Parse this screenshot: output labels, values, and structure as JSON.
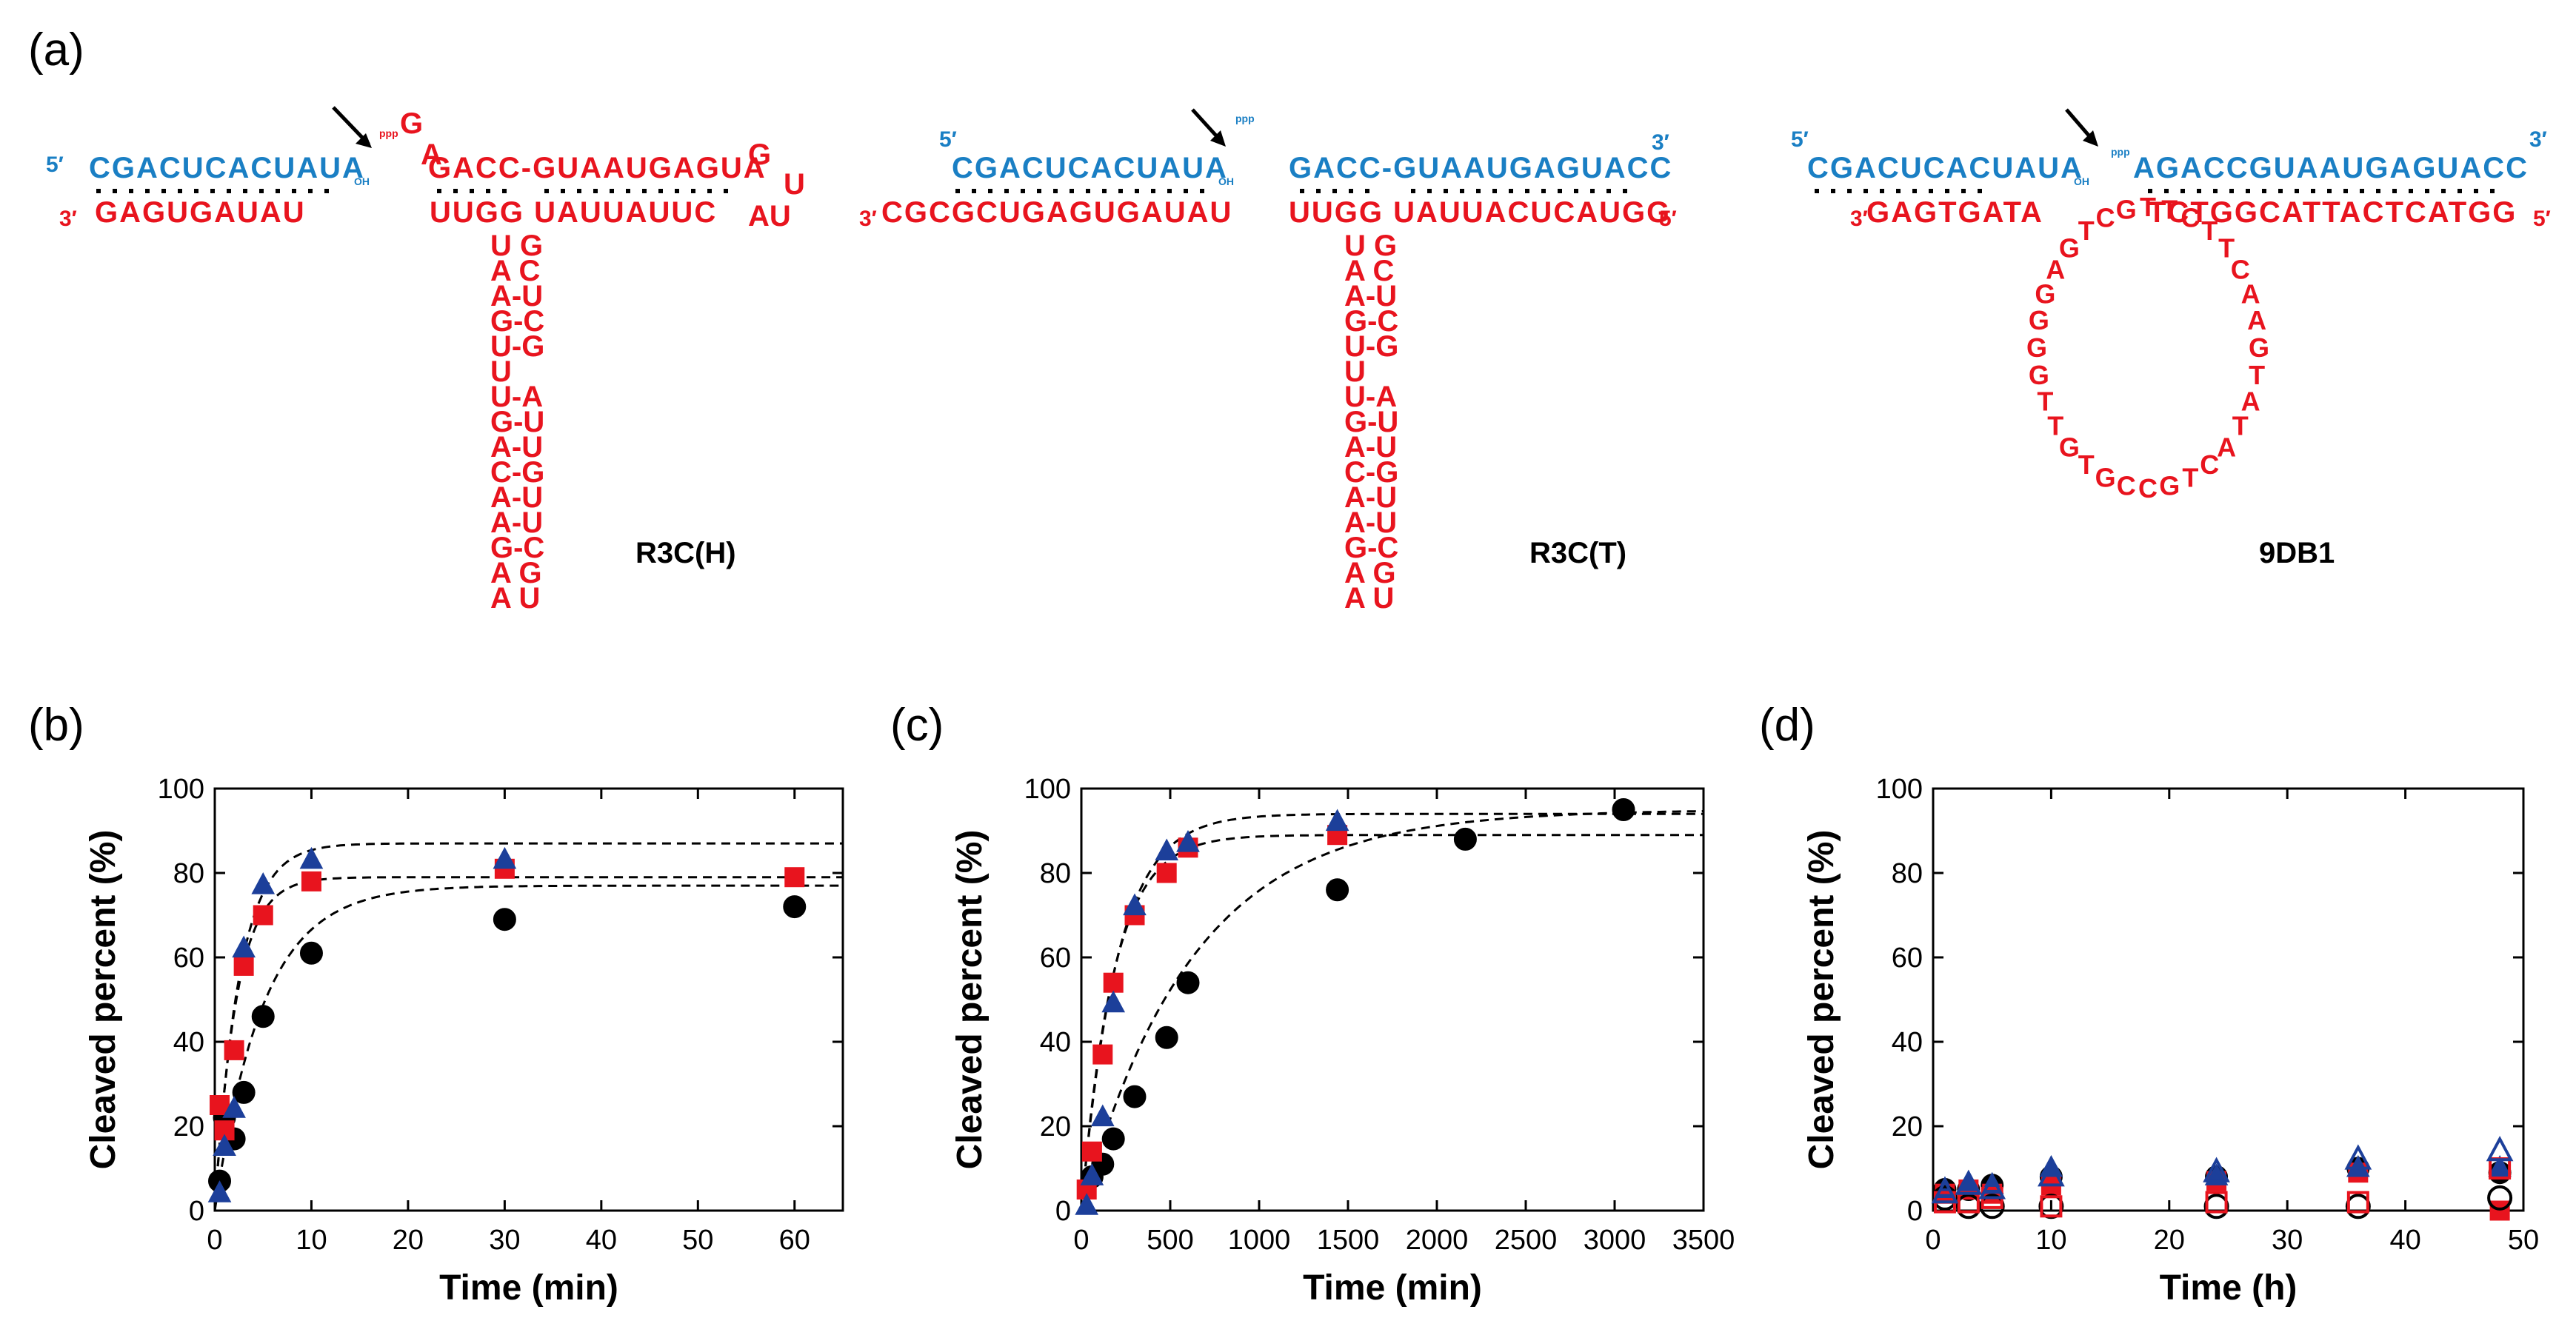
{
  "panel_labels": {
    "a": "(a)",
    "b": "(b)",
    "c": "(c)",
    "d": "(d)"
  },
  "colors": {
    "blue": "#1a7fc4",
    "red": "#e8141e",
    "black": "#000000",
    "navy": "#1c3f9a"
  },
  "structures": {
    "r3ch": {
      "name": "R3C(H)",
      "prime5": "5′",
      "prime3": "3′",
      "substrate": "CGACUCACUAUA",
      "oh": "OH",
      "ppp": "ppp",
      "g_plus": "G",
      "a_plus": "A",
      "top_strand": "GACC-GUAAUGAGUA",
      "loop_end": "G",
      "loop_u": "U",
      "enzyme_bottom": "GAGUGAUAU",
      "bottom_right": "UUGG UAUUAUUC",
      "au_end": "AU",
      "stem": [
        "U G",
        "A  C",
        "A-U",
        "G-C",
        "U-G",
        "U",
        "U-A",
        "G-U",
        "A-U",
        "C-G",
        "A-U",
        "A-U",
        "G-C",
        "A  G",
        "A U"
      ]
    },
    "r3ct": {
      "name": "R3C(T)",
      "prime5": "5′",
      "prime3": "3′",
      "substrate": "CGACUCACUAUA",
      "oh": "OH",
      "ppp": "ppp",
      "top_strand": "GACC-GUAAUGAGUACC",
      "enzyme_bottom": "CGCGCUGAGUGAUAU",
      "bottom_right": "UUGG UAUUACUCAUGG",
      "stem": [
        "U G",
        "A  C",
        "A-U",
        "G-C",
        "U-G",
        "U",
        "U-A",
        "G-U",
        "A-U",
        "C-G",
        "A-U",
        "A-U",
        "G-C",
        "A  G",
        "A U"
      ]
    },
    "9db1": {
      "name": "9DB1",
      "prime5": "5′",
      "prime3": "3′",
      "substrate": "CGACUCACUAUA",
      "oh": "OH",
      "ppp": "ppp",
      "top_strand": "AGACCGUAAUGAGUACC",
      "enzyme_bottom": "GAGTGATA",
      "bottom_right": "TCTGGCATTACTCATGG",
      "loop_label": "TTCTTC AAG TATACT GCCG TGTTGGGGAGTCG"
    }
  },
  "chart_data": [
    {
      "type": "scatter",
      "panel": "(b)",
      "xlabel": "Time (min)",
      "ylabel": "Cleaved percent (%)",
      "xlim": [
        0,
        65
      ],
      "ylim": [
        0,
        100
      ],
      "xticks": [
        0,
        10,
        20,
        30,
        40,
        50,
        60
      ],
      "yticks": [
        0,
        20,
        40,
        60,
        80,
        100
      ],
      "series": [
        {
          "marker": "circle",
          "color": "#000000",
          "filled": true,
          "x": [
            0.5,
            1,
            2,
            3,
            5,
            10,
            30,
            60
          ],
          "y": [
            7,
            22,
            17,
            28,
            46,
            61,
            69,
            72
          ]
        },
        {
          "marker": "square",
          "color": "#e8141e",
          "filled": true,
          "x": [
            0.5,
            1,
            2,
            3,
            5,
            10,
            30,
            60
          ],
          "y": [
            25,
            19,
            38,
            58,
            70,
            78,
            81,
            79
          ]
        },
        {
          "marker": "triangle",
          "color": "#1c3f9a",
          "filled": true,
          "x": [
            0.5,
            1,
            2,
            3,
            5,
            10,
            30
          ],
          "y": [
            4,
            15,
            24,
            62,
            77,
            83,
            83
          ]
        }
      ],
      "fits": [
        {
          "plateau": 77,
          "k": 0.2
        },
        {
          "plateau": 79,
          "k": 0.45
        },
        {
          "plateau": 87,
          "k": 0.4
        }
      ]
    },
    {
      "type": "scatter",
      "panel": "(c)",
      "xlabel": "Time (min)",
      "ylabel": "Cleaved percent (%)",
      "xlim": [
        0,
        3500
      ],
      "ylim": [
        0,
        100
      ],
      "xticks": [
        0,
        500,
        1000,
        1500,
        2000,
        2500,
        3000,
        3500
      ],
      "yticks": [
        0,
        20,
        40,
        60,
        80,
        100
      ],
      "series": [
        {
          "marker": "circle",
          "color": "#000000",
          "filled": true,
          "x": [
            60,
            120,
            180,
            300,
            480,
            600,
            1440,
            2160,
            3050
          ],
          "y": [
            8,
            11,
            17,
            27,
            41,
            54,
            76,
            88,
            95
          ]
        },
        {
          "marker": "square",
          "color": "#e8141e",
          "filled": true,
          "x": [
            30,
            60,
            120,
            180,
            300,
            480,
            600,
            1440
          ],
          "y": [
            5,
            14,
            37,
            54,
            70,
            80,
            86,
            89
          ]
        },
        {
          "marker": "triangle",
          "color": "#1c3f9a",
          "filled": true,
          "x": [
            30,
            60,
            120,
            180,
            300,
            480,
            600,
            1440
          ],
          "y": [
            1,
            8,
            22,
            49,
            72,
            85,
            87,
            92
          ]
        }
      ],
      "fits": [
        {
          "plateau": 95,
          "k": 0.0016
        },
        {
          "plateau": 89,
          "k": 0.0055
        },
        {
          "plateau": 94,
          "k": 0.005
        }
      ]
    },
    {
      "type": "scatter",
      "panel": "(d)",
      "xlabel": "Time (h)",
      "ylabel": "Cleaved percent (%)",
      "xlim": [
        0,
        50
      ],
      "ylim": [
        0,
        100
      ],
      "xticks": [
        0,
        10,
        20,
        30,
        40,
        50
      ],
      "yticks": [
        0,
        20,
        40,
        60,
        80,
        100
      ],
      "series": [
        {
          "marker": "circle",
          "color": "#000000",
          "filled": true,
          "x": [
            1,
            3,
            5,
            10,
            24,
            36,
            48
          ],
          "y": [
            5,
            5,
            6,
            8,
            8,
            10,
            9
          ]
        },
        {
          "marker": "square",
          "color": "#e8141e",
          "filled": true,
          "x": [
            1,
            3,
            5,
            10,
            24,
            36,
            48
          ],
          "y": [
            4,
            5,
            4,
            6,
            7,
            9,
            0
          ]
        },
        {
          "marker": "triangle",
          "color": "#1c3f9a",
          "filled": true,
          "x": [
            1,
            3,
            5,
            10,
            24,
            36,
            48
          ],
          "y": [
            5,
            6,
            6,
            10,
            8,
            10,
            10
          ]
        },
        {
          "marker": "circle",
          "color": "#000000",
          "filled": false,
          "x": [
            1,
            3,
            5,
            10,
            24,
            36,
            48
          ],
          "y": [
            3,
            1,
            1,
            1,
            1,
            1,
            3
          ]
        },
        {
          "marker": "square",
          "color": "#e8141e",
          "filled": false,
          "x": [
            1,
            3,
            5,
            10,
            24,
            36,
            48
          ],
          "y": [
            2,
            2,
            3,
            1,
            2,
            2,
            10
          ]
        },
        {
          "marker": "triangle",
          "color": "#1c3f9a",
          "filled": false,
          "x": [
            1,
            3,
            5,
            10,
            24,
            36,
            48
          ],
          "y": [
            4,
            6,
            5,
            8,
            9,
            12,
            14
          ]
        }
      ]
    }
  ]
}
